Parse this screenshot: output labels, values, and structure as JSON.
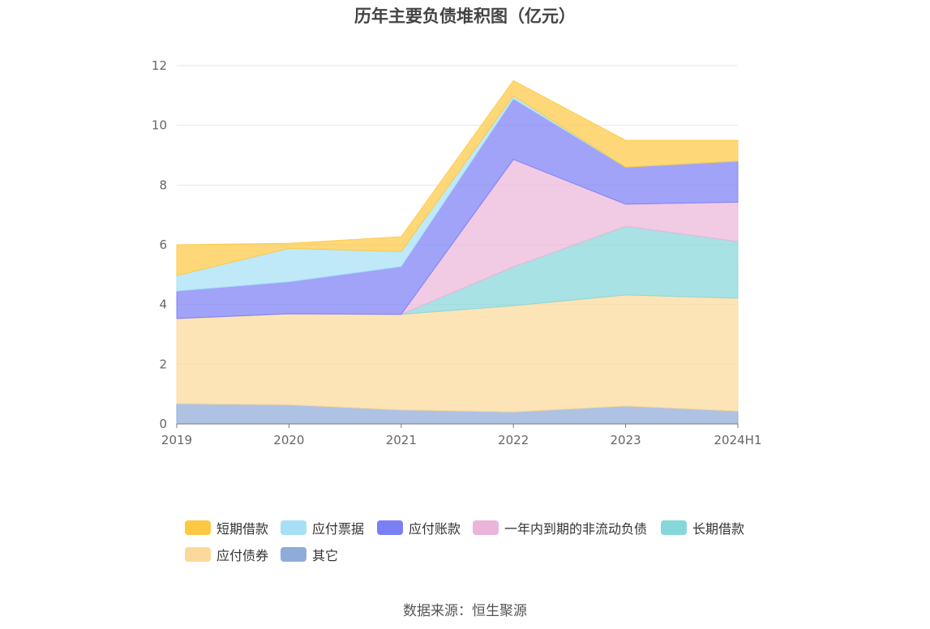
{
  "chart_data": {
    "type": "area",
    "stacked": true,
    "title": "历年主要负债堆积图（亿元）",
    "categories": [
      "2019",
      "2020",
      "2021",
      "2022",
      "2023",
      "2024H1"
    ],
    "ylim": [
      0,
      12
    ],
    "yticks": [
      "0",
      "2",
      "4",
      "6",
      "8",
      "10",
      "12"
    ],
    "grid": true,
    "legend_position": "bottom",
    "series": [
      {
        "name": "其它",
        "color": "#8fabd9",
        "values": [
          0.68,
          0.64,
          0.47,
          0.4,
          0.6,
          0.43
        ]
      },
      {
        "name": "应付债券",
        "color": "#fcd99a",
        "values": [
          2.85,
          3.05,
          3.2,
          3.56,
          3.72,
          3.78
        ]
      },
      {
        "name": "长期借款",
        "color": "#86d7d9",
        "values": [
          0,
          0,
          0,
          1.3,
          2.3,
          1.9
        ]
      },
      {
        "name": "一年内到期的非流动负债",
        "color": "#ebb5d9",
        "values": [
          0,
          0,
          0,
          3.6,
          0.74,
          1.32
        ]
      },
      {
        "name": "应付账款",
        "color": "#7b7ff5",
        "values": [
          0.92,
          1.07,
          1.6,
          2.03,
          1.24,
          1.37
        ]
      },
      {
        "name": "应付票据",
        "color": "#a6e0f7",
        "values": [
          0.52,
          1.12,
          0.5,
          0.1,
          0,
          0
        ]
      },
      {
        "name": "短期借款",
        "color": "#fdc944",
        "values": [
          1.03,
          0.17,
          0.5,
          0.51,
          0.9,
          0.7
        ]
      }
    ]
  },
  "legend": [
    {
      "label": "短期借款",
      "color": "#fdc944"
    },
    {
      "label": "应付票据",
      "color": "#a6e0f7"
    },
    {
      "label": "应付账款",
      "color": "#7b7ff5"
    },
    {
      "label": "一年内到期的非流动负债",
      "color": "#ebb5d9"
    },
    {
      "label": "长期借款",
      "color": "#86d7d9"
    },
    {
      "label": "应付债券",
      "color": "#fcd99a"
    },
    {
      "label": "其它",
      "color": "#8fabd9"
    }
  ],
  "source": "数据来源：恒生聚源"
}
